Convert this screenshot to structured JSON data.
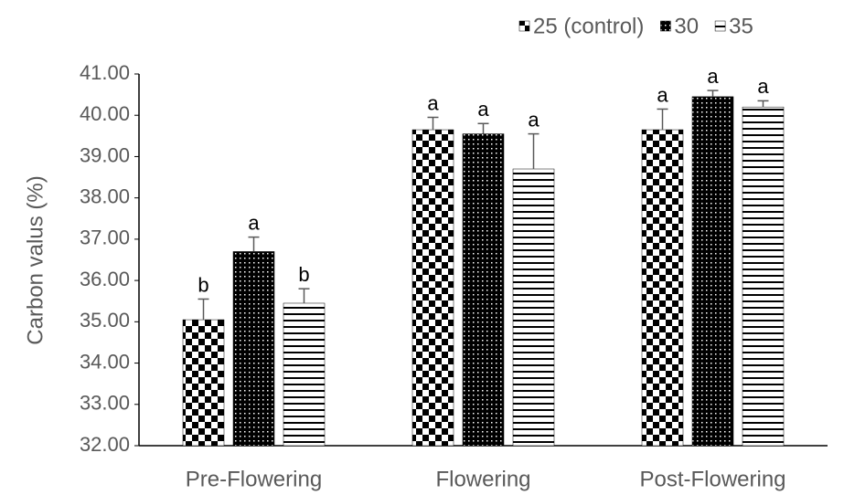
{
  "chart_data": {
    "type": "bar",
    "y_label": "Carbon valus (%)",
    "categories": [
      "Pre-Flowering",
      "Flowering",
      "Post-Flowering"
    ],
    "series": [
      {
        "name": "25 (control)",
        "color": "#000000",
        "pattern": "checker",
        "values": [
          35.05,
          39.65,
          39.65
        ],
        "errors": [
          0.5,
          0.3,
          0.5
        ],
        "labels": [
          "b",
          "a",
          "a"
        ]
      },
      {
        "name": "30",
        "color": "#000000",
        "pattern": "dots",
        "values": [
          36.7,
          39.55,
          40.45
        ],
        "errors": [
          0.35,
          0.25,
          0.15
        ],
        "labels": [
          "a",
          "a",
          "a"
        ]
      },
      {
        "name": "35",
        "color": "#000000",
        "pattern": "hlines",
        "values": [
          35.45,
          38.7,
          40.2
        ],
        "errors": [
          0.35,
          0.85,
          0.15
        ],
        "labels": [
          "b",
          "a",
          "a"
        ]
      }
    ],
    "ylim": [
      32,
      41
    ],
    "yticks": [
      {
        "value": 32,
        "label": "32.00"
      },
      {
        "value": 33,
        "label": "33.00"
      },
      {
        "value": 34,
        "label": "34.00"
      },
      {
        "value": 35,
        "label": "35.00"
      },
      {
        "value": 36,
        "label": "36.00"
      },
      {
        "value": 37,
        "label": "37.00"
      },
      {
        "value": 38,
        "label": "38.00"
      },
      {
        "value": 39,
        "label": "39.00"
      },
      {
        "value": 40,
        "label": "40.00"
      },
      {
        "value": 41,
        "label": "41.00"
      }
    ],
    "legend": "top-right",
    "grid": false
  }
}
